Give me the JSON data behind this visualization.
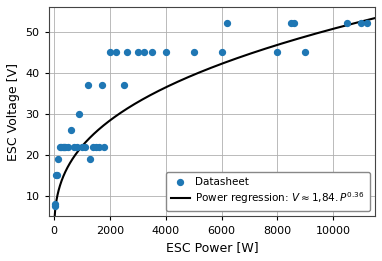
{
  "scatter_x": [
    10,
    30,
    50,
    100,
    150,
    200,
    250,
    300,
    350,
    400,
    500,
    600,
    700,
    800,
    900,
    1000,
    1100,
    1200,
    1300,
    1400,
    1500,
    1600,
    1700,
    1800,
    2000,
    2200,
    2500,
    2600,
    3000,
    3200,
    3500,
    4000,
    5000,
    6000,
    6200,
    8000,
    8500,
    8600,
    9000,
    10500,
    11000,
    11200
  ],
  "scatter_y": [
    8,
    7.5,
    15,
    15,
    19,
    22,
    22,
    22,
    22,
    22,
    22,
    26,
    22,
    22,
    30,
    22,
    22,
    37,
    19,
    22,
    22,
    22,
    37,
    22,
    45,
    45,
    37,
    45,
    45,
    45,
    45,
    45,
    45,
    45,
    52,
    45,
    52,
    52,
    45,
    52,
    52,
    52
  ],
  "scatter_color": "#1f77b4",
  "scatter_size": 18,
  "regression_a": 1.84,
  "regression_b": 0.36,
  "x_min": -200,
  "x_max": 11500,
  "y_min": 5,
  "y_max": 56,
  "xlabel": "ESC Power [W]",
  "ylabel": "ESC Voltage [V]",
  "xticks": [
    0,
    2000,
    4000,
    6000,
    8000,
    10000
  ],
  "yticks": [
    10,
    20,
    30,
    40,
    50
  ],
  "legend_label_scatter": "Datasheet",
  "legend_label_line": "Power regression: $V \\approx 1,\\!84{.}P^{0.36}$",
  "grid_color": "#b0b0b0",
  "bg_color": "#ffffff",
  "figsize": [
    3.82,
    2.61
  ],
  "dpi": 100
}
